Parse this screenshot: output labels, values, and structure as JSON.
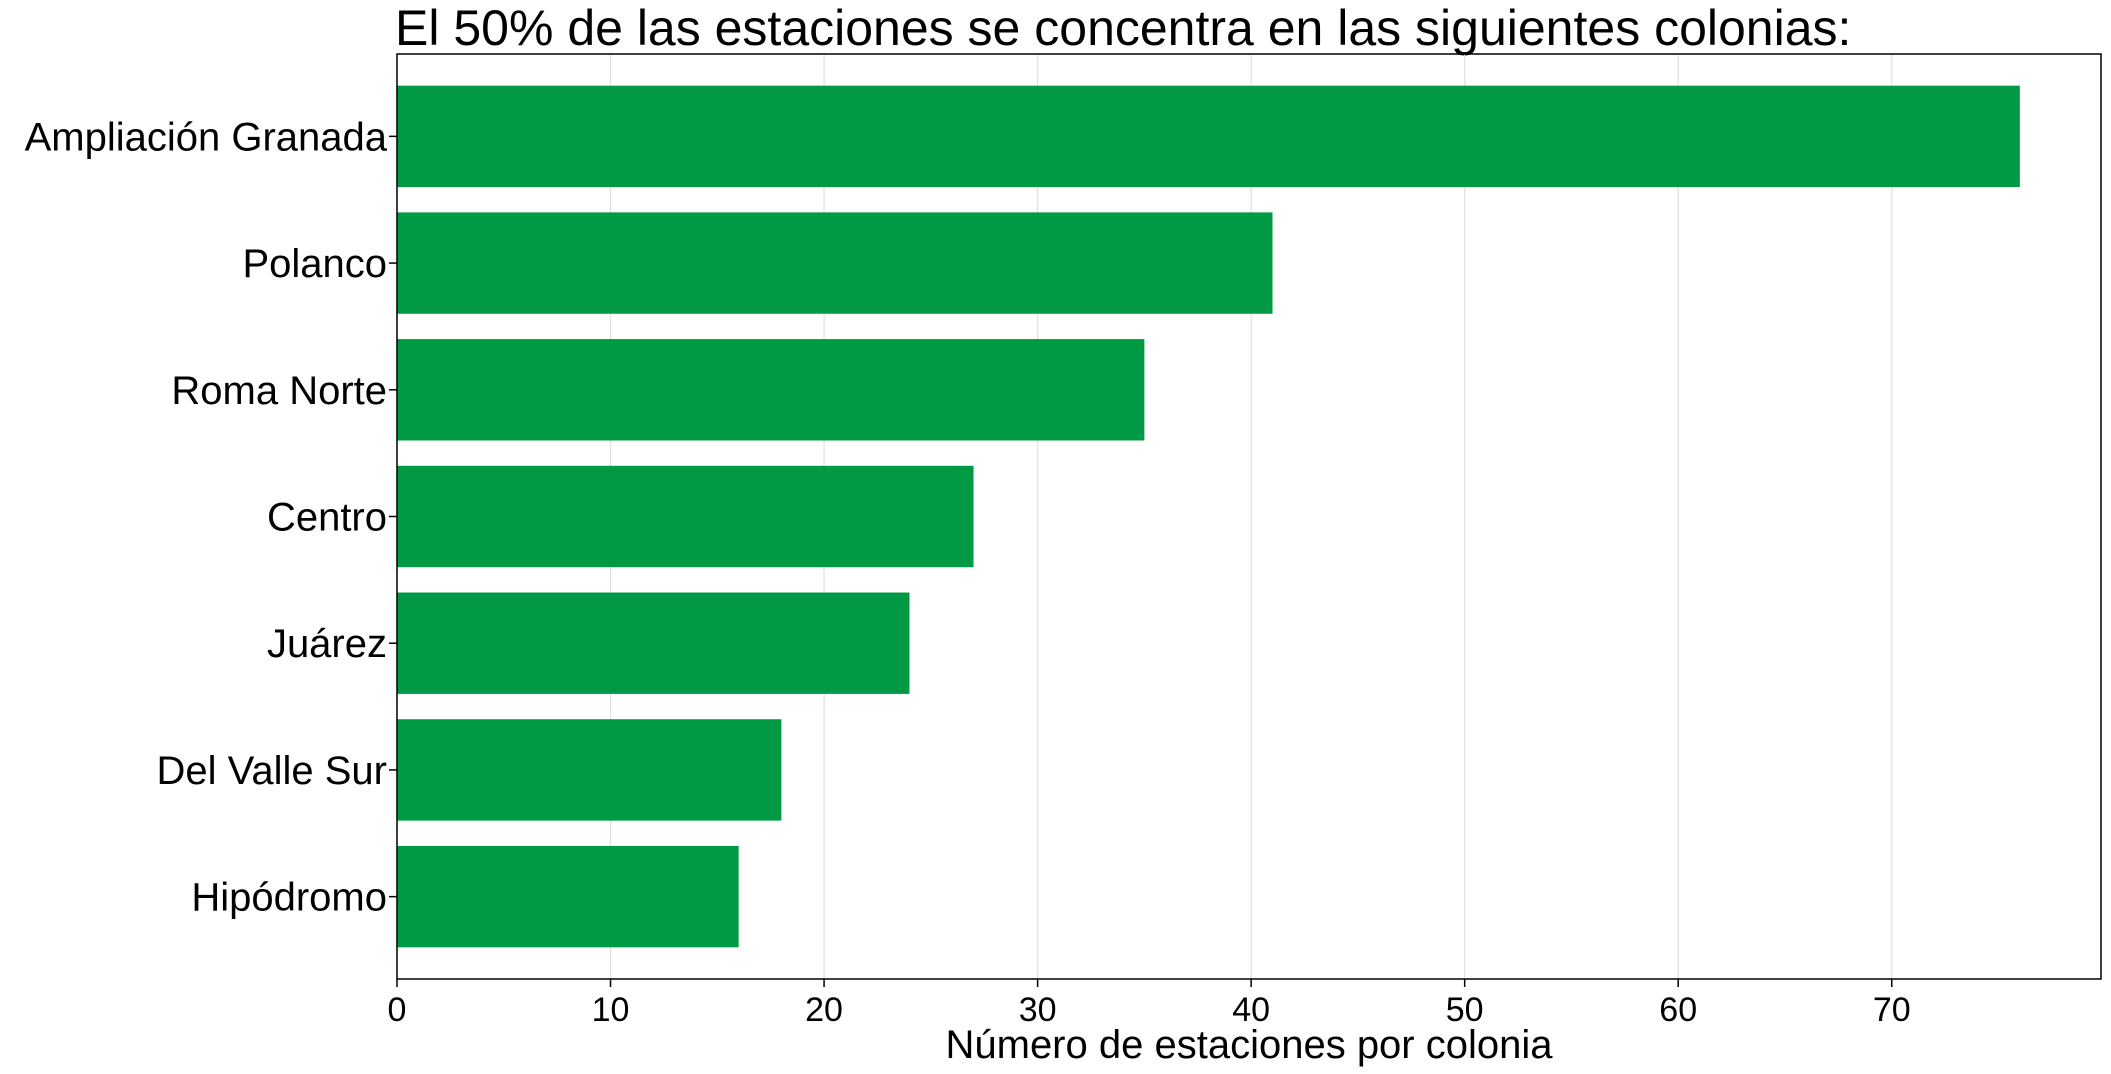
{
  "chart_data": {
    "type": "bar",
    "orientation": "horizontal",
    "title": "El 50% de las estaciones se concentra en las siguientes colonias:",
    "xlabel": "Número de estaciones por colonia",
    "ylabel": "",
    "categories": [
      "Ampliación Granada",
      "Polanco",
      "Roma Norte",
      "Centro",
      "Juárez",
      "Del Valle Sur",
      "Hipódromo"
    ],
    "values": [
      76,
      41,
      35,
      27,
      24,
      18,
      16
    ],
    "xlim": [
      0,
      79.8
    ],
    "xticks": [
      0,
      10,
      20,
      30,
      40,
      50,
      60,
      70
    ],
    "grid": "x",
    "bar_color": "#009944"
  }
}
